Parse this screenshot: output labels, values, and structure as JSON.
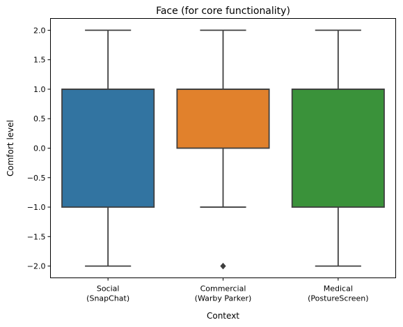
{
  "chart_data": {
    "type": "box",
    "title": "Face (for core functionality)",
    "xlabel": "Context",
    "ylabel": "Comfort level",
    "ylim": [
      -2.2,
      2.2
    ],
    "yticks": [
      -2.0,
      -1.5,
      -1.0,
      -0.5,
      0.0,
      0.5,
      1.0,
      1.5,
      2.0
    ],
    "ytick_labels": [
      "−2.0",
      "−1.5",
      "−1.0",
      "−0.5",
      "0.0",
      "0.5",
      "1.0",
      "1.5",
      "2.0"
    ],
    "grid": false,
    "categories": [
      [
        "Social",
        "(SnapChat)"
      ],
      [
        "Commercial",
        "(Warby Parker)"
      ],
      [
        "Medical",
        "(PostureScreen)"
      ]
    ],
    "boxes": [
      {
        "whisker_low": -2.0,
        "q1": -1.0,
        "median": 1.0,
        "q3": 1.0,
        "whisker_high": 2.0,
        "outliers": [],
        "color": "#3274a1"
      },
      {
        "whisker_low": -1.0,
        "q1": 0.0,
        "median": 1.0,
        "q3": 1.0,
        "whisker_high": 2.0,
        "outliers": [
          -2.0
        ],
        "color": "#e1812c"
      },
      {
        "whisker_low": -2.0,
        "q1": -1.0,
        "median": 1.0,
        "q3": 1.0,
        "whisker_high": 2.0,
        "outliers": [],
        "color": "#3a923a"
      }
    ],
    "line_color": "#3f3f3f"
  }
}
